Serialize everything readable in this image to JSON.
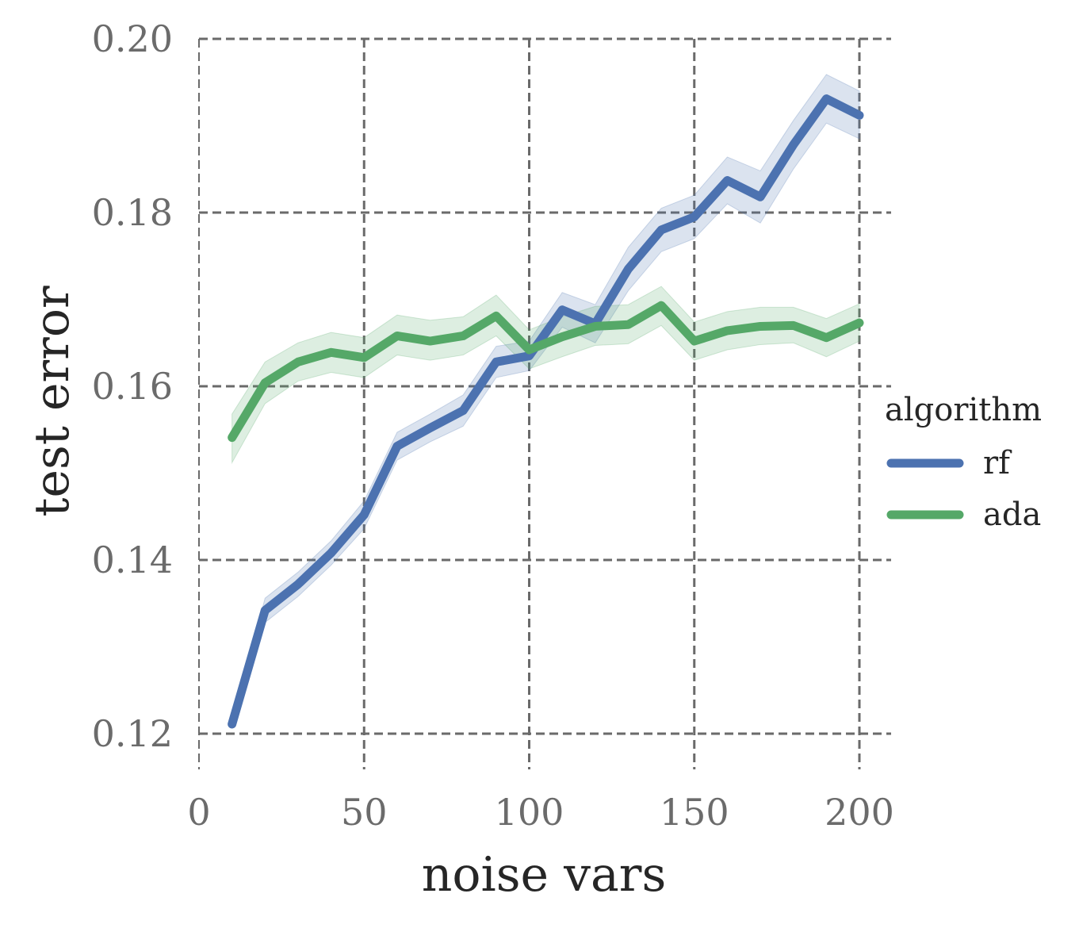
{
  "chart_data": {
    "type": "line",
    "xlabel": "noise vars",
    "ylabel": "test error",
    "xlim": [
      0,
      210
    ],
    "ylim": [
      0.118,
      0.2
    ],
    "xticks": [
      0,
      50,
      100,
      150,
      200
    ],
    "yticks": [
      0.12,
      0.14,
      0.16,
      0.18,
      0.2
    ],
    "xtick_labels": [
      "0",
      "50",
      "100",
      "150",
      "200"
    ],
    "ytick_labels": [
      "0.12",
      "0.14",
      "0.16",
      "0.18",
      "0.20"
    ],
    "grid": true,
    "legend": {
      "title": "algorithm",
      "placement": "right"
    },
    "x": [
      10,
      20,
      30,
      40,
      50,
      60,
      70,
      80,
      90,
      100,
      110,
      120,
      130,
      140,
      150,
      160,
      170,
      180,
      190,
      200
    ],
    "series": [
      {
        "name": "rf",
        "color": "#4c72b0",
        "values": [
          0.1211,
          0.1342,
          0.1372,
          0.1408,
          0.1452,
          0.1531,
          0.1552,
          0.1572,
          0.1628,
          0.1635,
          0.1688,
          0.1672,
          0.1735,
          0.178,
          0.1795,
          0.1837,
          0.1818,
          0.1878,
          0.1931,
          0.1912
        ],
        "ci_lower": [
          0.1211,
          0.1328,
          0.1358,
          0.1394,
          0.1436,
          0.1515,
          0.1536,
          0.1554,
          0.161,
          0.1618,
          0.1668,
          0.165,
          0.171,
          0.1755,
          0.177,
          0.181,
          0.1788,
          0.185,
          0.1903,
          0.1885
        ],
        "ci_upper": [
          0.1211,
          0.1356,
          0.1386,
          0.1422,
          0.1468,
          0.1547,
          0.1568,
          0.159,
          0.1646,
          0.1652,
          0.1708,
          0.1694,
          0.176,
          0.1805,
          0.182,
          0.1864,
          0.1848,
          0.1906,
          0.1959,
          0.194
        ]
      },
      {
        "name": "ada",
        "color": "#55a868",
        "values": [
          0.1541,
          0.1604,
          0.1628,
          0.1639,
          0.1633,
          0.1658,
          0.1652,
          0.1658,
          0.1681,
          0.1642,
          0.1657,
          0.1669,
          0.1671,
          0.1693,
          0.1652,
          0.1664,
          0.1669,
          0.167,
          0.1656,
          0.1673
        ],
        "ci_lower": [
          0.1512,
          0.158,
          0.1606,
          0.1616,
          0.161,
          0.1636,
          0.163,
          0.1636,
          0.1658,
          0.162,
          0.1634,
          0.1647,
          0.1649,
          0.167,
          0.163,
          0.1642,
          0.1648,
          0.165,
          0.1634,
          0.1652
        ],
        "ci_upper": [
          0.1568,
          0.1628,
          0.165,
          0.1662,
          0.1656,
          0.1682,
          0.1676,
          0.168,
          0.1705,
          0.1665,
          0.168,
          0.1692,
          0.1694,
          0.1715,
          0.1674,
          0.1686,
          0.1691,
          0.1691,
          0.1678,
          0.1695
        ]
      }
    ]
  }
}
